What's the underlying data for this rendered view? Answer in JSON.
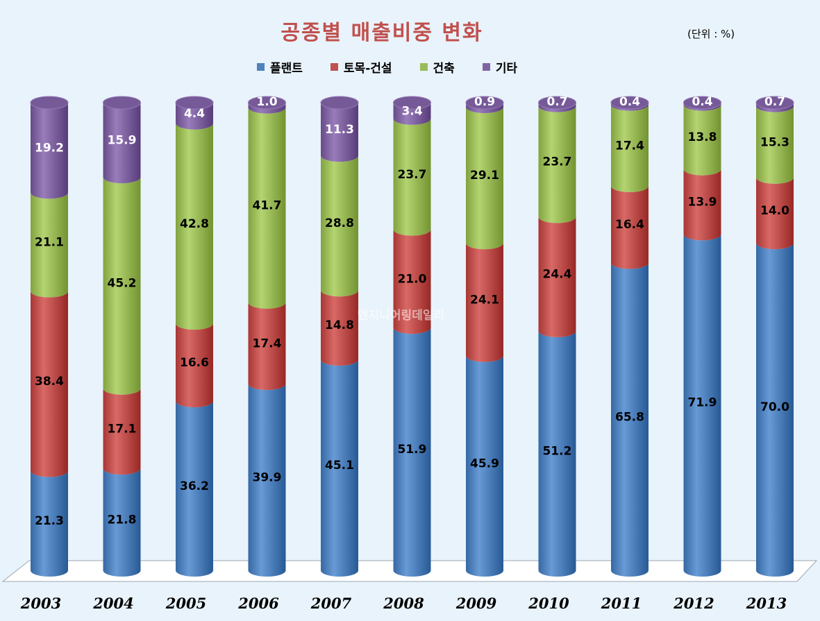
{
  "title": "공종별 매출비중 변화",
  "unit_label": "(단위 : %)",
  "watermark": "엔지니어링데일리",
  "colors": {
    "플랜트": "#4f81bd",
    "토목-건설": "#c0504d",
    "건축": "#9bbb59",
    "기타": "#8064a2"
  },
  "chart_data": {
    "type": "bar",
    "stacked": true,
    "orientation": "vertical",
    "style": "3d-cylinder",
    "title": "공종별 매출비중 변화",
    "unit": "%",
    "ylim": [
      0,
      100
    ],
    "legend_position": "top",
    "categories": [
      "2003",
      "2004",
      "2005",
      "2006",
      "2007",
      "2008",
      "2009",
      "2010",
      "2011",
      "2012",
      "2013"
    ],
    "series": [
      {
        "name": "플랜트",
        "values": [
          21.3,
          21.8,
          36.2,
          39.9,
          45.1,
          51.9,
          45.9,
          51.2,
          65.8,
          71.9,
          70.0
        ]
      },
      {
        "name": "토목-건설",
        "values": [
          38.4,
          17.1,
          16.6,
          17.4,
          14.8,
          21.0,
          24.1,
          24.4,
          16.4,
          13.9,
          14.0
        ]
      },
      {
        "name": "건축",
        "values": [
          21.1,
          45.2,
          42.8,
          41.7,
          28.8,
          23.7,
          29.1,
          23.7,
          17.4,
          13.8,
          15.3
        ]
      },
      {
        "name": "기타",
        "values": [
          19.2,
          15.9,
          4.4,
          1.0,
          11.3,
          3.4,
          0.9,
          0.7,
          0.4,
          0.4,
          0.7
        ]
      }
    ],
    "data_labels": true,
    "grid": false
  }
}
